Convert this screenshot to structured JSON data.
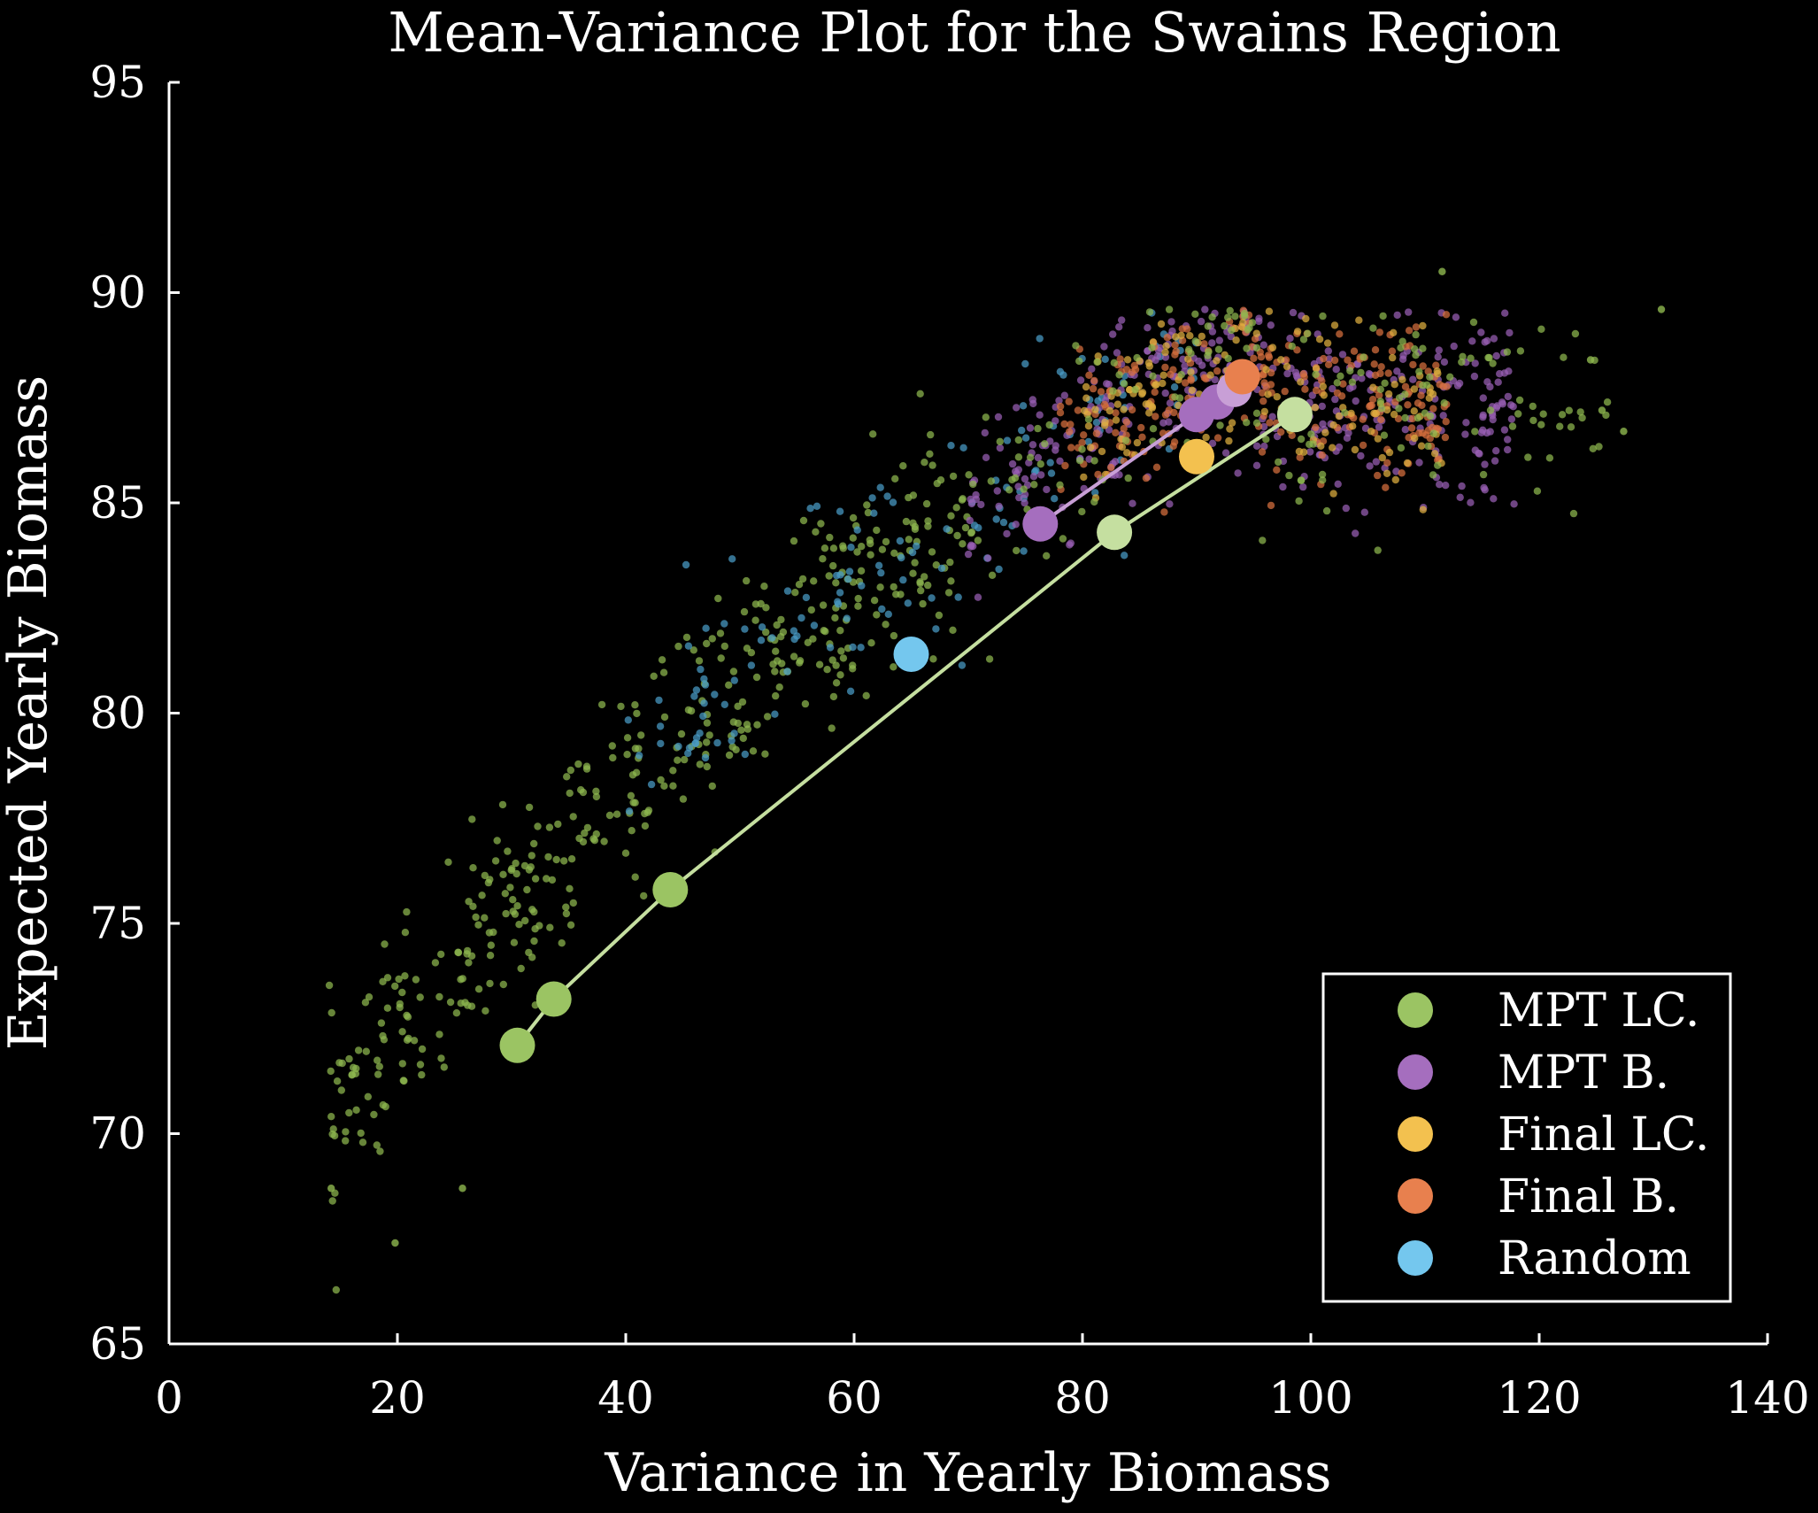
{
  "chart_data": {
    "type": "scatter",
    "title": "Mean-Variance Plot for the Swains Region",
    "xlabel": "Variance in Yearly Biomass",
    "ylabel": "Expected Yearly Biomass",
    "xlim": [
      0,
      140
    ],
    "ylim": [
      65,
      95
    ],
    "xticks": [
      "0",
      "20",
      "40",
      "60",
      "80",
      "100",
      "120",
      "140"
    ],
    "yticks": [
      "65",
      "70",
      "75",
      "80",
      "85",
      "90",
      "95"
    ],
    "xtick_values": [
      0,
      20,
      40,
      60,
      80,
      100,
      120,
      140
    ],
    "ytick_values": [
      65,
      70,
      75,
      80,
      85,
      90,
      95
    ],
    "grid": false,
    "legend_position": "bottom-right",
    "colors": {
      "background": "#000000",
      "axes": "#ffffff",
      "mpt_lc": "#9BC463",
      "mpt_lc_light": "#C5DFA0",
      "mpt_b": "#A56EBE",
      "mpt_b_light": "#C89FD6",
      "final_lc": "#F3C14F",
      "final_b": "#E8804E",
      "random": "#74C7EE"
    },
    "series": [
      {
        "name": "MPT LC.",
        "color": "#9BC463",
        "points": [
          [
            30.5,
            72.1
          ],
          [
            33.7,
            73.2
          ],
          [
            43.9,
            75.8
          ],
          [
            82.8,
            84.3
          ],
          [
            98.6,
            87.1
          ]
        ],
        "frontier": true
      },
      {
        "name": "MPT B.",
        "color": "#A56EBE",
        "points": [
          [
            76.3,
            84.5
          ],
          [
            90.0,
            87.1
          ],
          [
            91.8,
            87.4
          ],
          [
            93.3,
            87.7
          ]
        ],
        "frontier": true
      },
      {
        "name": "Final LC.",
        "color": "#F3C14F",
        "points": [
          [
            90.0,
            86.1
          ]
        ]
      },
      {
        "name": "Final B.",
        "color": "#E8804E",
        "points": [
          [
            94.0,
            88.0
          ]
        ]
      },
      {
        "name": "Random",
        "color": "#74C7EE",
        "points": [
          [
            65.0,
            81.4
          ]
        ]
      }
    ],
    "background_clouds": [
      {
        "series": "MPT LC.",
        "color": "#8FB84F",
        "count": 420,
        "x_range": [
          14,
          70
        ],
        "y_center_fn": "trend",
        "spread": 1.2
      },
      {
        "series": "Random",
        "color": "#4A9CC7",
        "count": 150,
        "x_range": [
          40,
          90
        ],
        "y_center_fn": "trend",
        "spread": 1.3
      },
      {
        "series": "MPT B.",
        "color": "#9A5FB5",
        "count": 380,
        "x_range": [
          70,
          118
        ],
        "y_center_fn": "trend",
        "spread": 1.1
      },
      {
        "series": "Final B.",
        "color": "#D8703F",
        "count": 260,
        "x_range": [
          78,
          112
        ],
        "y_center_fn": "trend",
        "spread": 0.9
      },
      {
        "series": "Final LC.",
        "color": "#E0B040",
        "count": 150,
        "x_range": [
          80,
          112
        ],
        "y_center_fn": "trend",
        "spread": 1.0
      },
      {
        "series": "MPT LC.",
        "color": "#8FB84F",
        "count": 180,
        "x_range": [
          70,
          126
        ],
        "y_center_fn": "trend",
        "spread": 1.2
      }
    ],
    "outliers": [
      [
        111.5,
        90.5
      ],
      [
        130.7,
        89.6
      ],
      [
        124.5,
        88.4
      ],
      [
        19.8,
        67.4
      ],
      [
        14.2,
        68.7
      ],
      [
        25.7,
        68.7
      ],
      [
        127.4,
        86.7
      ],
      [
        125.5,
        87.2
      ]
    ]
  }
}
